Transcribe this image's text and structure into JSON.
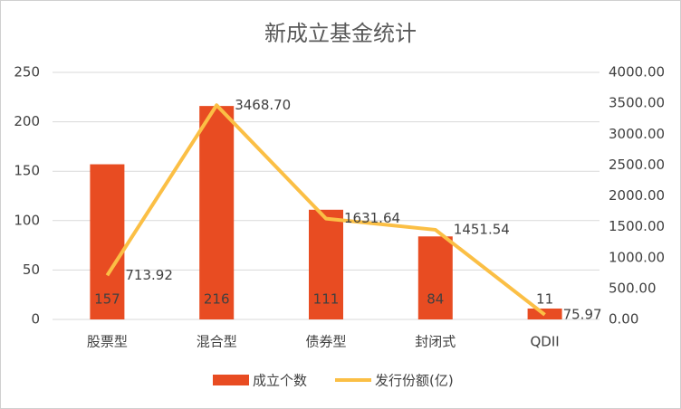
{
  "chart_data": {
    "type": "bar-line",
    "title": "新成立基金统计",
    "categories": [
      "股票型",
      "混合型",
      "债券型",
      "封闭式",
      "QDII"
    ],
    "series": [
      {
        "name": "成立个数",
        "type": "bar",
        "color": "#e84c22",
        "values": [
          157,
          216,
          111,
          84,
          11
        ]
      },
      {
        "name": "发行份额(亿)",
        "type": "line",
        "axis": "y2",
        "color": "#fbbf45",
        "values": [
          713.92,
          3468.7,
          1631.64,
          1451.54,
          75.97
        ],
        "value_labels": [
          "713.92",
          "3468.70",
          "1631.64",
          "1451.54",
          "75.97"
        ]
      }
    ],
    "ylim": [
      0,
      250
    ],
    "yticks": [
      0,
      50,
      100,
      150,
      200,
      250
    ],
    "y2lim": [
      0,
      4000
    ],
    "y2ticks": [
      {
        "value": 0,
        "label": "0.00"
      },
      {
        "value": 500,
        "label": "500.00"
      },
      {
        "value": 1000,
        "label": "1000.00"
      },
      {
        "value": 1500,
        "label": "1500.00"
      },
      {
        "value": 2000,
        "label": "2000.00"
      },
      {
        "value": 2500,
        "label": "2500.00"
      },
      {
        "value": 3000,
        "label": "3000.00"
      },
      {
        "value": 3500,
        "label": "3500.00"
      },
      {
        "value": 4000,
        "label": "4000.00"
      }
    ],
    "grid": true,
    "legend": "bottom"
  }
}
